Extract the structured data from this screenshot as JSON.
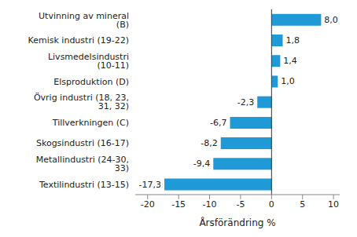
{
  "chart_data": {
    "type": "bar",
    "orientation": "horizontal",
    "x_label": "Årsförändring %",
    "categories": [
      "Utvinning av mineral (B)",
      "Kemisk industri (19-22)",
      "Livsmedelsindustri (10-11)",
      "Elsproduktion (D)",
      "Övrig industri (18, 23, 31, 32)",
      "Tillverkningen (C)",
      "Skogsindustri (16-17)",
      "Metallindustri (24-30, 33)",
      "Textilindustri (13-15)"
    ],
    "values": [
      8.0,
      1.8,
      1.4,
      1.0,
      -2.3,
      -6.7,
      -8.2,
      -9.4,
      -17.3
    ],
    "value_labels": [
      "8,0",
      "1,8",
      "1,4",
      "1,0",
      "-2,3",
      "-6,7",
      "-8,2",
      "-9,4",
      "-17,3"
    ],
    "data_labels": true,
    "color": "#1f9ad6",
    "xlim": [
      -22,
      11
    ],
    "xticks": [
      -20,
      -15,
      -10,
      -5,
      0,
      5,
      10
    ],
    "grid": false
  }
}
